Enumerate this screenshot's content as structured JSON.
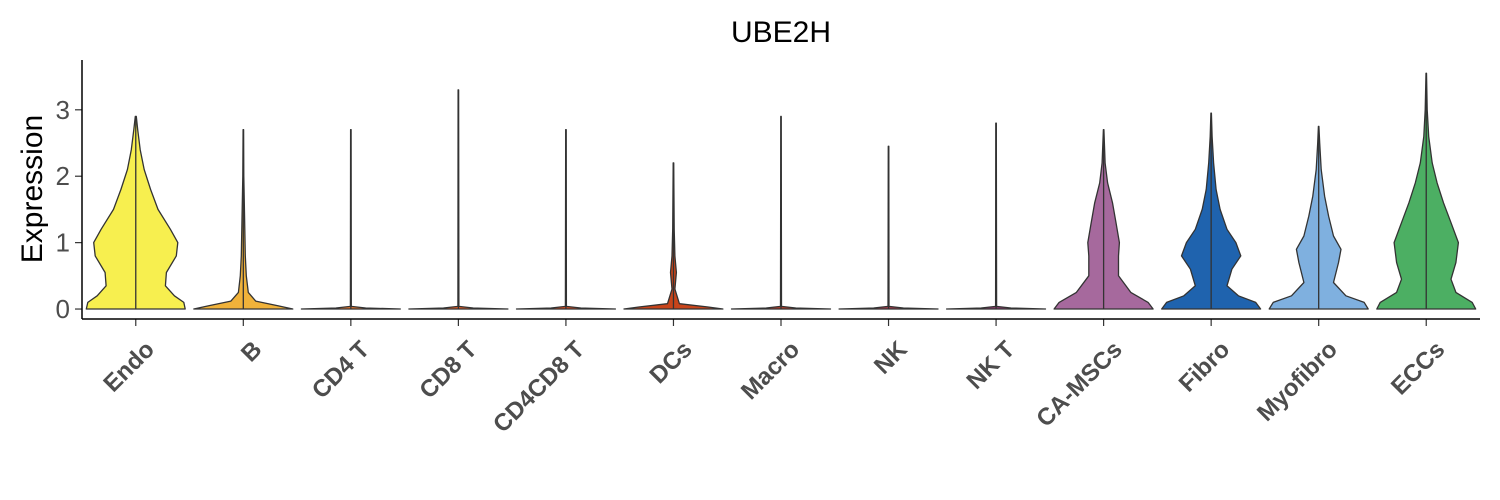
{
  "chart_data": {
    "type": "violin",
    "title": "UBE2H",
    "xlabel": "",
    "ylabel": "Expression",
    "yticks": [
      0,
      1,
      2,
      3
    ],
    "ylim": [
      -0.15,
      3.75
    ],
    "grid": false,
    "legend": "none",
    "categories": [
      {
        "name": "Endo",
        "color": "#f7ef4f",
        "max": 2.9,
        "density": [
          [
            0,
            1.0
          ],
          [
            0.1,
            0.97
          ],
          [
            0.2,
            0.78
          ],
          [
            0.35,
            0.6
          ],
          [
            0.55,
            0.62
          ],
          [
            0.8,
            0.82
          ],
          [
            1.0,
            0.85
          ],
          [
            1.2,
            0.7
          ],
          [
            1.5,
            0.45
          ],
          [
            1.8,
            0.3
          ],
          [
            2.1,
            0.17
          ],
          [
            2.4,
            0.09
          ],
          [
            2.7,
            0.04
          ],
          [
            2.9,
            0.01
          ]
        ]
      },
      {
        "name": "B",
        "color": "#f0b23a",
        "max": 2.7,
        "density": [
          [
            0,
            1.0
          ],
          [
            0.05,
            0.7
          ],
          [
            0.12,
            0.25
          ],
          [
            0.25,
            0.1
          ],
          [
            0.5,
            0.06
          ],
          [
            0.8,
            0.04
          ],
          [
            1.2,
            0.03
          ],
          [
            1.6,
            0.02
          ],
          [
            2.0,
            0.01
          ],
          [
            2.7,
            0.005
          ]
        ]
      },
      {
        "name": "CD4 T",
        "color": "#e8782e",
        "max": 2.7,
        "density": [
          [
            0,
            1.0
          ],
          [
            0.015,
            0.3
          ],
          [
            0.04,
            0.01
          ],
          [
            2.7,
            0.005
          ]
        ]
      },
      {
        "name": "CD8 T",
        "color": "#e05a24",
        "max": 3.3,
        "density": [
          [
            0,
            1.0
          ],
          [
            0.015,
            0.3
          ],
          [
            0.04,
            0.01
          ],
          [
            3.3,
            0.005
          ]
        ]
      },
      {
        "name": "CD4CD8 T",
        "color": "#d84a1e",
        "max": 2.7,
        "density": [
          [
            0,
            1.0
          ],
          [
            0.015,
            0.3
          ],
          [
            0.04,
            0.01
          ],
          [
            2.7,
            0.005
          ]
        ]
      },
      {
        "name": "DCs",
        "color": "#c8441a",
        "max": 2.2,
        "density": [
          [
            0,
            1.0
          ],
          [
            0.03,
            0.7
          ],
          [
            0.08,
            0.12
          ],
          [
            0.3,
            0.03
          ],
          [
            0.55,
            0.06
          ],
          [
            0.8,
            0.03
          ],
          [
            1.2,
            0.015
          ],
          [
            2.2,
            0.005
          ]
        ]
      },
      {
        "name": "Macro",
        "color": "#b83e2a",
        "max": 2.9,
        "density": [
          [
            0,
            1.0
          ],
          [
            0.015,
            0.3
          ],
          [
            0.04,
            0.01
          ],
          [
            2.9,
            0.005
          ]
        ]
      },
      {
        "name": "NK",
        "color": "#a23a4a",
        "max": 2.45,
        "density": [
          [
            0,
            1.0
          ],
          [
            0.015,
            0.3
          ],
          [
            0.04,
            0.01
          ],
          [
            2.45,
            0.005
          ]
        ]
      },
      {
        "name": "NK T",
        "color": "#8a3a6a",
        "max": 2.8,
        "density": [
          [
            0,
            1.0
          ],
          [
            0.015,
            0.3
          ],
          [
            0.04,
            0.01
          ],
          [
            2.8,
            0.005
          ]
        ]
      },
      {
        "name": "CA-MSCs",
        "color": "#a6699d",
        "max": 2.7,
        "density": [
          [
            0,
            1.0
          ],
          [
            0.1,
            0.9
          ],
          [
            0.25,
            0.55
          ],
          [
            0.5,
            0.3
          ],
          [
            0.8,
            0.3
          ],
          [
            1.0,
            0.32
          ],
          [
            1.3,
            0.25
          ],
          [
            1.6,
            0.18
          ],
          [
            1.9,
            0.08
          ],
          [
            2.2,
            0.03
          ],
          [
            2.7,
            0.005
          ]
        ]
      },
      {
        "name": "Fibro",
        "color": "#1f63ae",
        "max": 2.95,
        "density": [
          [
            0,
            1.0
          ],
          [
            0.1,
            0.9
          ],
          [
            0.2,
            0.55
          ],
          [
            0.35,
            0.32
          ],
          [
            0.6,
            0.42
          ],
          [
            0.8,
            0.6
          ],
          [
            1.0,
            0.5
          ],
          [
            1.2,
            0.32
          ],
          [
            1.5,
            0.18
          ],
          [
            1.8,
            0.1
          ],
          [
            2.2,
            0.05
          ],
          [
            2.6,
            0.02
          ],
          [
            2.95,
            0.005
          ]
        ]
      },
      {
        "name": "Myofibro",
        "color": "#7fb0df",
        "max": 2.75,
        "density": [
          [
            0,
            1.0
          ],
          [
            0.1,
            0.92
          ],
          [
            0.2,
            0.55
          ],
          [
            0.4,
            0.3
          ],
          [
            0.7,
            0.4
          ],
          [
            0.9,
            0.45
          ],
          [
            1.1,
            0.3
          ],
          [
            1.4,
            0.2
          ],
          [
            1.7,
            0.12
          ],
          [
            2.1,
            0.05
          ],
          [
            2.5,
            0.02
          ],
          [
            2.75,
            0.005
          ]
        ]
      },
      {
        "name": "ECCs",
        "color": "#4caf63",
        "max": 3.55,
        "density": [
          [
            0,
            1.0
          ],
          [
            0.1,
            0.93
          ],
          [
            0.25,
            0.6
          ],
          [
            0.45,
            0.5
          ],
          [
            0.7,
            0.6
          ],
          [
            1.0,
            0.65
          ],
          [
            1.3,
            0.5
          ],
          [
            1.6,
            0.35
          ],
          [
            1.9,
            0.22
          ],
          [
            2.2,
            0.12
          ],
          [
            2.6,
            0.05
          ],
          [
            3.0,
            0.02
          ],
          [
            3.55,
            0.005
          ]
        ]
      }
    ]
  }
}
